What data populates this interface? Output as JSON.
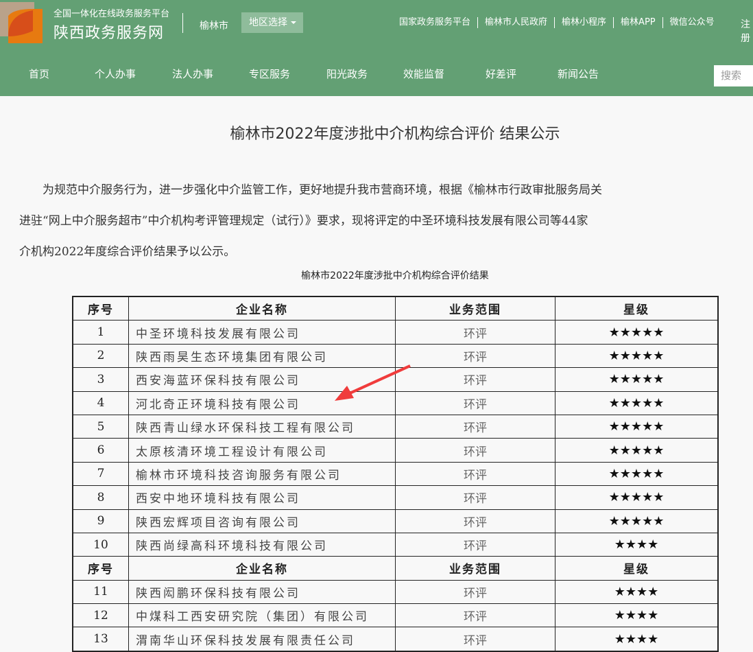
{
  "header": {
    "platform": "全国一体化在线政务服务平台",
    "site_name": "陕西政务服务网",
    "city": "榆林市",
    "region_select": "地区选择",
    "top_links": [
      "国家政务服务平台",
      "榆林市人民政府",
      "榆林小程序",
      "榆林APP",
      "微信公众号"
    ],
    "login": "注册",
    "nav": [
      "首页",
      "个人办事",
      "法人办事",
      "专区服务",
      "阳光政务",
      "效能监督",
      "好差评",
      "新闻公告"
    ],
    "search_placeholder": "搜索",
    "theme_color": "#63a074"
  },
  "article": {
    "title": "榆林市2022年度涉批中介机构综合评价 结果公示",
    "paragraph_lines": [
      "　　为规范中介服务行为，进一步强化中介监管工作，更好地提升我市营商环境，根据《榆林市行政审批服务局关",
      "进驻“网上中介服务超市”中介机构考评管理规定（试行）》要求，现将评定的中圣环境科技发展有限公司等44家",
      "介机构2022年度综合评价结果予以公示。"
    ],
    "table_title": "榆林市2022年度涉批中介机构综合评价结果"
  },
  "table": {
    "headers": [
      "序号",
      "企业名称",
      "业务范围",
      "星级"
    ],
    "rows": [
      [
        "1",
        "中圣环境科技发展有限公司",
        "环评",
        "★★★★★"
      ],
      [
        "2",
        "陕西雨昊生态环境集团有限公司",
        "环评",
        "★★★★★"
      ],
      [
        "3",
        "西安海蓝环保科技有限公司",
        "环评",
        "★★★★★"
      ],
      [
        "4",
        "河北奇正环境科技有限公司",
        "环评",
        "★★★★★"
      ],
      [
        "5",
        "陕西青山绿水环保科技工程有限公司",
        "环评",
        "★★★★★"
      ],
      [
        "6",
        "太原核清环境工程设计有限公司",
        "环评",
        "★★★★★"
      ],
      [
        "7",
        "榆林市环境科技咨询服务有限公司",
        "环评",
        "★★★★★"
      ],
      [
        "8",
        "西安中地环境科技有限公司",
        "环评",
        "★★★★★"
      ],
      [
        "9",
        "陕西宏辉项目咨询有限公司",
        "环评",
        "★★★★★"
      ],
      [
        "10",
        "陕西尚绿高科环境科技有限公司",
        "环评",
        "★★★★"
      ]
    ],
    "rows2": [
      [
        "11",
        "陕西闳鹏环保科技有限公司",
        "环评",
        "★★★★"
      ],
      [
        "12",
        "中煤科工西安研究院（集团）有限公司",
        "环评",
        "★★★★"
      ],
      [
        "13",
        "渭南华山环保科技发展有限责任公司",
        "环评",
        "★★★★"
      ]
    ]
  },
  "annotation": {
    "arrow_color": "#f03c3c"
  }
}
